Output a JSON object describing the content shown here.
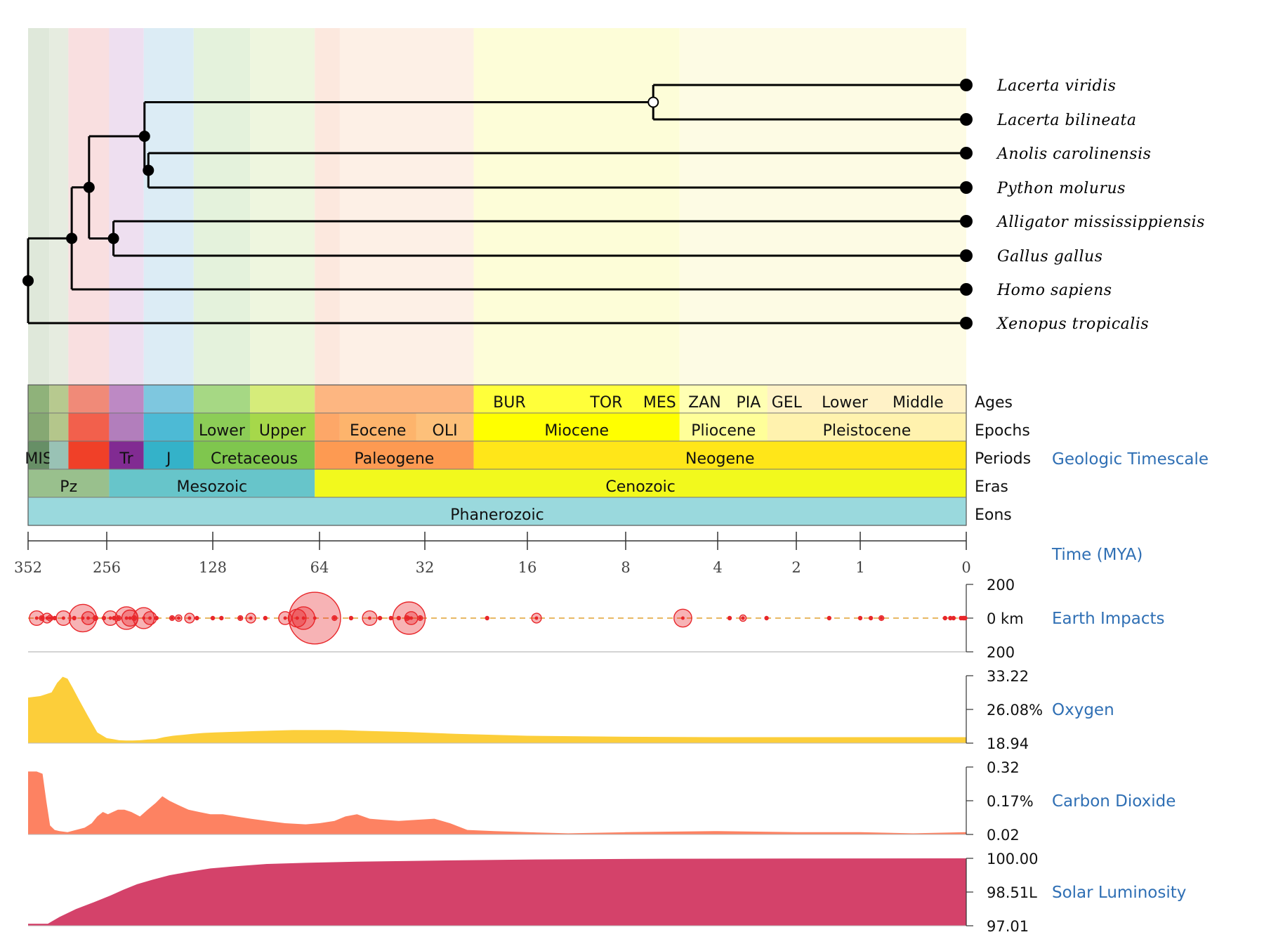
{
  "tree": {
    "species": [
      "Lacerta viridis",
      "Lacerta bilineata",
      "Anolis carolinensis",
      "Python molurus",
      "Alligator mississippiensis",
      "Gallus gallus",
      "Homo sapiens",
      "Xenopus tropicalis"
    ],
    "nodes": [
      {
        "id": "root",
        "mya": 352,
        "children": [
          "homo_group",
          "Xenopus tropicalis"
        ]
      },
      {
        "id": "homo_group",
        "mya": 295,
        "children": [
          "amniote_inner",
          "Homo sapiens"
        ]
      },
      {
        "id": "amniote_inner",
        "mya": 275,
        "children": [
          "squamata",
          "archosaur"
        ]
      },
      {
        "id": "squamata",
        "mya": 200,
        "children": [
          "lacerta",
          "anolis_python"
        ]
      },
      {
        "id": "anolis_python",
        "mya": 195,
        "children": [
          "Anolis carolinensis",
          "Python molurus"
        ]
      },
      {
        "id": "archosaur",
        "mya": 245,
        "children": [
          "Alligator mississippiensis",
          "Gallus gallus"
        ]
      },
      {
        "id": "lacerta",
        "mya": 6.5,
        "open": true,
        "children": [
          "Lacerta viridis",
          "Lacerta bilineata"
        ]
      }
    ]
  },
  "timescale": {
    "title": "Geologic Timescale",
    "row_labels": [
      "Ages",
      "Epochs",
      "Periods",
      "Eras",
      "Eons"
    ],
    "ages": [
      {
        "label": "BUR",
        "start": 20.4,
        "end": 16
      },
      {
        "label": "TOR",
        "start": 11.6,
        "end": 7.2
      },
      {
        "label": "MES",
        "start": 7.2,
        "end": 5.33
      },
      {
        "label": "ZAN",
        "start": 5.33,
        "end": 3.6
      },
      {
        "label": "PIA",
        "start": 3.6,
        "end": 2.58
      },
      {
        "label": "GEL",
        "start": 2.58,
        "end": 1.8
      },
      {
        "label": "Lower",
        "start": 1.8,
        "end": 0.78
      },
      {
        "label": "Middle",
        "start": 0.78,
        "end": 0.13
      }
    ],
    "epochs": [
      {
        "label": "Lower",
        "start": 145,
        "end": 100.5,
        "color": "#8ccd57"
      },
      {
        "label": "Upper",
        "start": 100.5,
        "end": 66,
        "color": "#a6d84a"
      },
      {
        "label": "Eocene",
        "start": 56,
        "end": 33.9,
        "color": "#fdb46c"
      },
      {
        "label": "OLI",
        "start": 33.9,
        "end": 23,
        "color": "#fdc07a"
      },
      {
        "label": "Miocene",
        "start": 23,
        "end": 5.33,
        "color": "#ffff00"
      },
      {
        "label": "Pliocene",
        "start": 5.33,
        "end": 2.58,
        "color": "#ffff99"
      },
      {
        "label": "Pleistocene",
        "start": 2.58,
        "end": 0,
        "color": "#fff2ae"
      }
    ],
    "periods": [
      {
        "label": "MIS",
        "start": 352,
        "end": 323,
        "color": "#678f66"
      },
      {
        "label": "",
        "start": 323,
        "end": 299,
        "color": "#99c2b5"
      },
      {
        "label": "",
        "start": 299,
        "end": 252,
        "color": "#f04028"
      },
      {
        "label": "Tr",
        "start": 252,
        "end": 201,
        "color": "#812b92"
      },
      {
        "label": "J",
        "start": 201,
        "end": 145,
        "color": "#34b2c9"
      },
      {
        "label": "Cretaceous",
        "start": 145,
        "end": 66,
        "color": "#7fc64e"
      },
      {
        "label": "Paleogene",
        "start": 66,
        "end": 23,
        "color": "#fd9a52"
      },
      {
        "label": "Neogene",
        "start": 23,
        "end": 0,
        "color": "#ffe619"
      }
    ],
    "eras": [
      {
        "label": "Pz",
        "start": 352,
        "end": 252,
        "color": "#99c08d"
      },
      {
        "label": "Mesozoic",
        "start": 252,
        "end": 66,
        "color": "#67c5ca"
      },
      {
        "label": "Cenozoic",
        "start": 66,
        "end": 0,
        "color": "#f2f91d"
      }
    ],
    "eons": [
      {
        "label": "Phanerozoic",
        "start": 352,
        "end": 0,
        "color": "#9ad9dd"
      }
    ]
  },
  "time_axis": {
    "label": "Time (MYA)",
    "ticks": [
      "352",
      "256",
      "128",
      "64",
      "32",
      "16",
      "8",
      "4",
      "2",
      "1",
      "0"
    ]
  },
  "impacts": {
    "label": "Earth Impacts",
    "axis_top": "200",
    "axis_mid": "0 km",
    "axis_bottom": "200",
    "color": "#e8262a",
    "craters": [
      {
        "mya": 340,
        "d": 18
      },
      {
        "mya": 333,
        "d": 6
      },
      {
        "mya": 326,
        "d": 12
      },
      {
        "mya": 322,
        "d": 7
      },
      {
        "mya": 316,
        "d": 4
      },
      {
        "mya": 305,
        "d": 18
      },
      {
        "mya": 292,
        "d": 4
      },
      {
        "mya": 282,
        "d": 34
      },
      {
        "mya": 276,
        "d": 16
      },
      {
        "mya": 268,
        "d": 6
      },
      {
        "mya": 259,
        "d": 4
      },
      {
        "mya": 250,
        "d": 18
      },
      {
        "mya": 244,
        "d": 4
      },
      {
        "mya": 237,
        "d": 6
      },
      {
        "mya": 225,
        "d": 28
      },
      {
        "mya": 220,
        "d": 20
      },
      {
        "mya": 214,
        "d": 6
      },
      {
        "mya": 201,
        "d": 26
      },
      {
        "mya": 193,
        "d": 16
      },
      {
        "mya": 185,
        "d": 4
      },
      {
        "mya": 167,
        "d": 6
      },
      {
        "mya": 160,
        "d": 8
      },
      {
        "mya": 149,
        "d": 12
      },
      {
        "mya": 142,
        "d": 4
      },
      {
        "mya": 128,
        "d": 4
      },
      {
        "mya": 121,
        "d": 4
      },
      {
        "mya": 107,
        "d": 6
      },
      {
        "mya": 100,
        "d": 12
      },
      {
        "mya": 91,
        "d": 4
      },
      {
        "mya": 80,
        "d": 16
      },
      {
        "mya": 74,
        "d": 22
      },
      {
        "mya": 71,
        "d": 28
      },
      {
        "mya": 66,
        "d": 64
      },
      {
        "mya": 58,
        "d": 6
      },
      {
        "mya": 52,
        "d": 4
      },
      {
        "mya": 46,
        "d": 18
      },
      {
        "mya": 43,
        "d": 4
      },
      {
        "mya": 40,
        "d": 4
      },
      {
        "mya": 38,
        "d": 4
      },
      {
        "mya": 36,
        "d": 6
      },
      {
        "mya": 35.5,
        "d": 40
      },
      {
        "mya": 35,
        "d": 16
      },
      {
        "mya": 33,
        "d": 6
      },
      {
        "mya": 21,
        "d": 4
      },
      {
        "mya": 15,
        "d": 12
      },
      {
        "mya": 5.2,
        "d": 22
      },
      {
        "mya": 3.6,
        "d": 4
      },
      {
        "mya": 3.2,
        "d": 8
      },
      {
        "mya": 2.6,
        "d": 4
      },
      {
        "mya": 1.4,
        "d": 4
      },
      {
        "mya": 1.0,
        "d": 4
      },
      {
        "mya": 0.9,
        "d": 4
      },
      {
        "mya": 0.8,
        "d": 6
      },
      {
        "mya": 0.2,
        "d": 4
      },
      {
        "mya": 0.15,
        "d": 4
      },
      {
        "mya": 0.12,
        "d": 4
      },
      {
        "mya": 0.05,
        "d": 4
      },
      {
        "mya": 0.03,
        "d": 4
      },
      {
        "mya": 0.02,
        "d": 4
      },
      {
        "mya": 0.01,
        "d": 4
      }
    ]
  },
  "oxygen": {
    "label": "Oxygen",
    "axis_top": "33.22",
    "axis_mid": "26.08%",
    "axis_bottom": "18.94",
    "color": "#fcce3a",
    "ylim": [
      18.94,
      33.22
    ],
    "points": [
      [
        352,
        28.6
      ],
      [
        335,
        28.9
      ],
      [
        320,
        29.7
      ],
      [
        313,
        31.7
      ],
      [
        306,
        33.0
      ],
      [
        300,
        32.6
      ],
      [
        294,
        30.7
      ],
      [
        286,
        28.0
      ],
      [
        276,
        24.6
      ],
      [
        266,
        21.2
      ],
      [
        256,
        20.0
      ],
      [
        246,
        19.8
      ],
      [
        236,
        19.55
      ],
      [
        226,
        19.5
      ],
      [
        216,
        19.5
      ],
      [
        206,
        19.55
      ],
      [
        196,
        19.7
      ],
      [
        186,
        19.8
      ],
      [
        176,
        20.2
      ],
      [
        166,
        20.5
      ],
      [
        156,
        20.7
      ],
      [
        146,
        20.9
      ],
      [
        136,
        21.1
      ],
      [
        126,
        21.2
      ],
      [
        116,
        21.3
      ],
      [
        106,
        21.4
      ],
      [
        96,
        21.5
      ],
      [
        86,
        21.6
      ],
      [
        76,
        21.7
      ],
      [
        66,
        21.7
      ],
      [
        56,
        21.7
      ],
      [
        46,
        21.5
      ],
      [
        36,
        21.3
      ],
      [
        26,
        20.9
      ],
      [
        16,
        20.5
      ],
      [
        8,
        20.3
      ],
      [
        4,
        20.2
      ],
      [
        2,
        20.2
      ],
      [
        1,
        20.2
      ],
      [
        0,
        20.2
      ]
    ]
  },
  "co2": {
    "label": "Carbon Dioxide",
    "axis_top": "0.32",
    "axis_mid": "0.17%",
    "axis_bottom": "0.02",
    "color": "#fd8262",
    "ylim": [
      0.02,
      0.32
    ],
    "points": [
      [
        352,
        0.3
      ],
      [
        340,
        0.3
      ],
      [
        332,
        0.29
      ],
      [
        327,
        0.17
      ],
      [
        322,
        0.06
      ],
      [
        316,
        0.04
      ],
      [
        310,
        0.035
      ],
      [
        300,
        0.03
      ],
      [
        290,
        0.04
      ],
      [
        280,
        0.05
      ],
      [
        272,
        0.07
      ],
      [
        266,
        0.1
      ],
      [
        260,
        0.12
      ],
      [
        254,
        0.11
      ],
      [
        246,
        0.12
      ],
      [
        238,
        0.13
      ],
      [
        228,
        0.13
      ],
      [
        218,
        0.12
      ],
      [
        206,
        0.1
      ],
      [
        196,
        0.13
      ],
      [
        186,
        0.16
      ],
      [
        178,
        0.19
      ],
      [
        170,
        0.17
      ],
      [
        160,
        0.15
      ],
      [
        150,
        0.13
      ],
      [
        140,
        0.12
      ],
      [
        130,
        0.11
      ],
      [
        120,
        0.11
      ],
      [
        110,
        0.1
      ],
      [
        100,
        0.09
      ],
      [
        90,
        0.08
      ],
      [
        80,
        0.07
      ],
      [
        70,
        0.065
      ],
      [
        64,
        0.07
      ],
      [
        58,
        0.08
      ],
      [
        54,
        0.1
      ],
      [
        50,
        0.11
      ],
      [
        46,
        0.09
      ],
      [
        42,
        0.085
      ],
      [
        38,
        0.08
      ],
      [
        34,
        0.085
      ],
      [
        30,
        0.09
      ],
      [
        27,
        0.07
      ],
      [
        24,
        0.04
      ],
      [
        20,
        0.035
      ],
      [
        16,
        0.03
      ],
      [
        12,
        0.025
      ],
      [
        8,
        0.03
      ],
      [
        4,
        0.035
      ],
      [
        2,
        0.03
      ],
      [
        1,
        0.03
      ],
      [
        0.5,
        0.025
      ],
      [
        0,
        0.03
      ]
    ]
  },
  "luminosity": {
    "label": "Solar Luminosity",
    "axis_top": "100.00",
    "axis_mid": "98.51L",
    "axis_bottom": "97.01",
    "color": "#d4426a",
    "ylim": [
      97.01,
      100.0
    ],
    "points": [
      [
        352,
        97.1
      ],
      [
        325,
        97.1
      ],
      [
        310,
        97.4
      ],
      [
        290,
        97.75
      ],
      [
        270,
        98.05
      ],
      [
        250,
        98.35
      ],
      [
        230,
        98.6
      ],
      [
        210,
        98.85
      ],
      [
        190,
        99.05
      ],
      [
        170,
        99.25
      ],
      [
        150,
        99.4
      ],
      [
        130,
        99.55
      ],
      [
        110,
        99.65
      ],
      [
        90,
        99.75
      ],
      [
        70,
        99.8
      ],
      [
        50,
        99.85
      ],
      [
        30,
        99.9
      ],
      [
        15,
        99.95
      ],
      [
        6,
        99.98
      ],
      [
        2,
        99.99
      ],
      [
        0,
        100.0
      ]
    ]
  }
}
